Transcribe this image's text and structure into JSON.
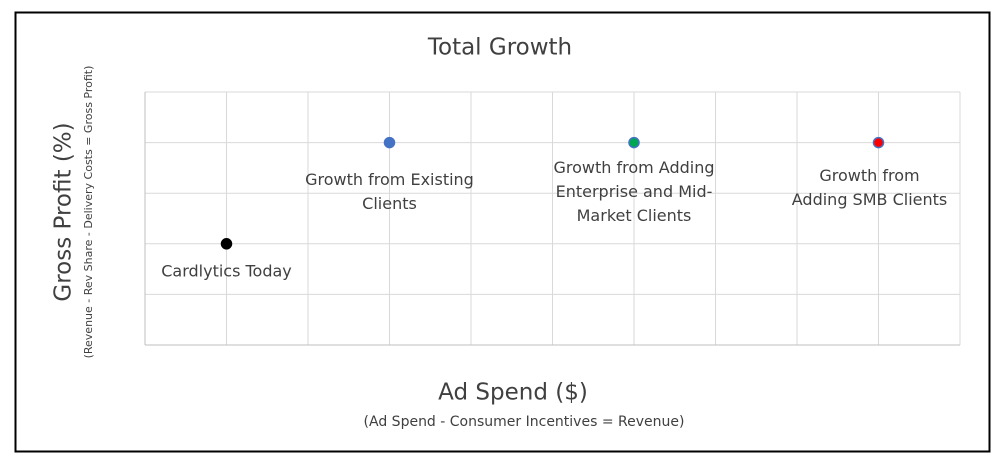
{
  "chart_data": {
    "type": "scatter",
    "title": "Total Growth",
    "y_label": "Gross Profit (%)",
    "y_sublabel": "(Revenue - Rev Share - Delivery Costs = Gross Profit)",
    "x_label": "Ad Spend ($)",
    "x_sublabel": "(Ad Spend - Consumer Incentives = Revenue)",
    "xlim": [
      0,
      10
    ],
    "ylim": [
      0,
      5
    ],
    "xticks": [
      0,
      1,
      2,
      3,
      4,
      5,
      6,
      7,
      8,
      9,
      10
    ],
    "yticks": [
      0,
      1,
      2,
      3,
      4,
      5
    ],
    "grid": true,
    "points": [
      {
        "label": [
          "Cardlytics Today"
        ],
        "x": 1,
        "y": 2,
        "color": "#000000",
        "edge": "#000000"
      },
      {
        "label": [
          "Growth from Existing",
          "Clients"
        ],
        "x": 3,
        "y": 4,
        "color": "#4472c4",
        "edge": "#4472c4"
      },
      {
        "label": [
          "Growth from Adding",
          "Enterprise and Mid-",
          "Market Clients"
        ],
        "x": 6,
        "y": 4,
        "color": "#00a651",
        "edge": "#4472c4"
      },
      {
        "label": [
          "Growth from",
          "Adding SMB Clients"
        ],
        "x": 9,
        "y": 4,
        "color": "#ff0000",
        "edge": "#4472c4"
      }
    ]
  }
}
